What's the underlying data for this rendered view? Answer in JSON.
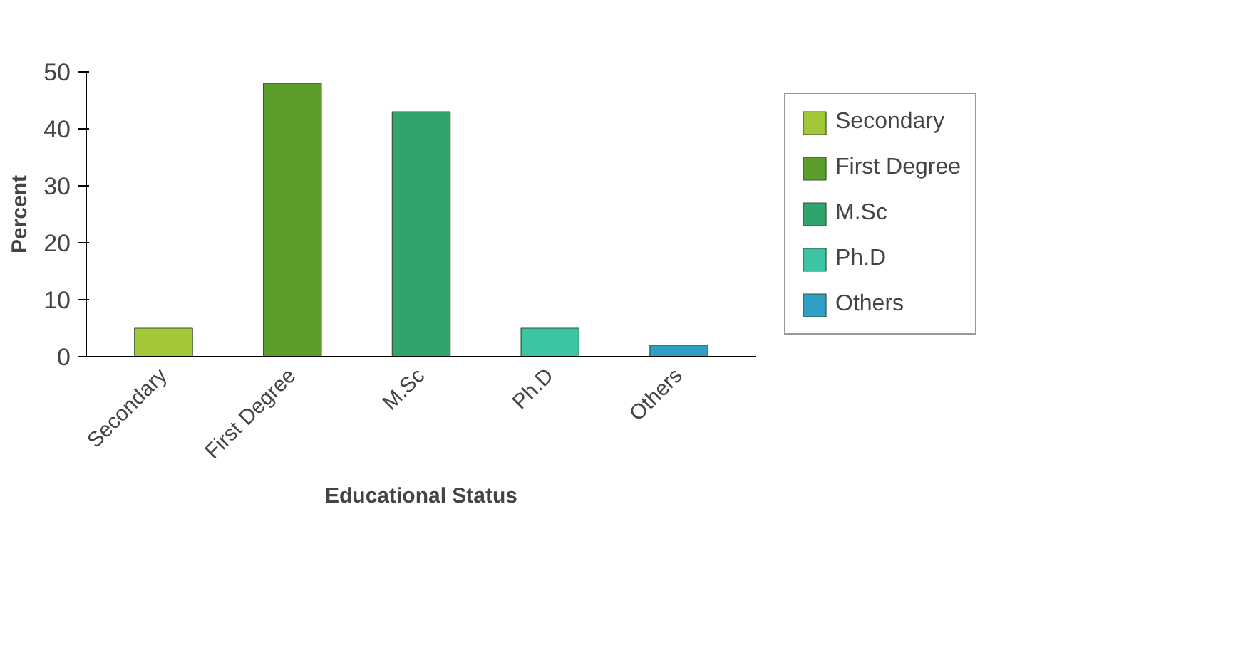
{
  "chart_data": {
    "type": "bar",
    "xlabel": "Educational Status",
    "ylabel": "Percent",
    "categories": [
      "Secondary",
      "First Degree",
      "M.Sc",
      "Ph.D",
      "Others"
    ],
    "series": [
      {
        "name": "Secondary",
        "color": "#a2c83a",
        "values": [
          5,
          null,
          null,
          null,
          null
        ]
      },
      {
        "name": "First Degree",
        "color": "#5c9e2c",
        "values": [
          null,
          48,
          null,
          null,
          null
        ]
      },
      {
        "name": "M.Sc",
        "color": "#2fa56c",
        "values": [
          null,
          null,
          43,
          null,
          null
        ]
      },
      {
        "name": "Ph.D",
        "color": "#3cc4a4",
        "values": [
          null,
          null,
          null,
          5,
          null
        ]
      },
      {
        "name": "Others",
        "color": "#2f9fc6",
        "values": [
          null,
          null,
          null,
          null,
          2
        ]
      }
    ],
    "ylim": [
      0,
      50
    ],
    "yticks": [
      0,
      10,
      20,
      30,
      40,
      50
    ],
    "grid": false,
    "legend": "right"
  }
}
